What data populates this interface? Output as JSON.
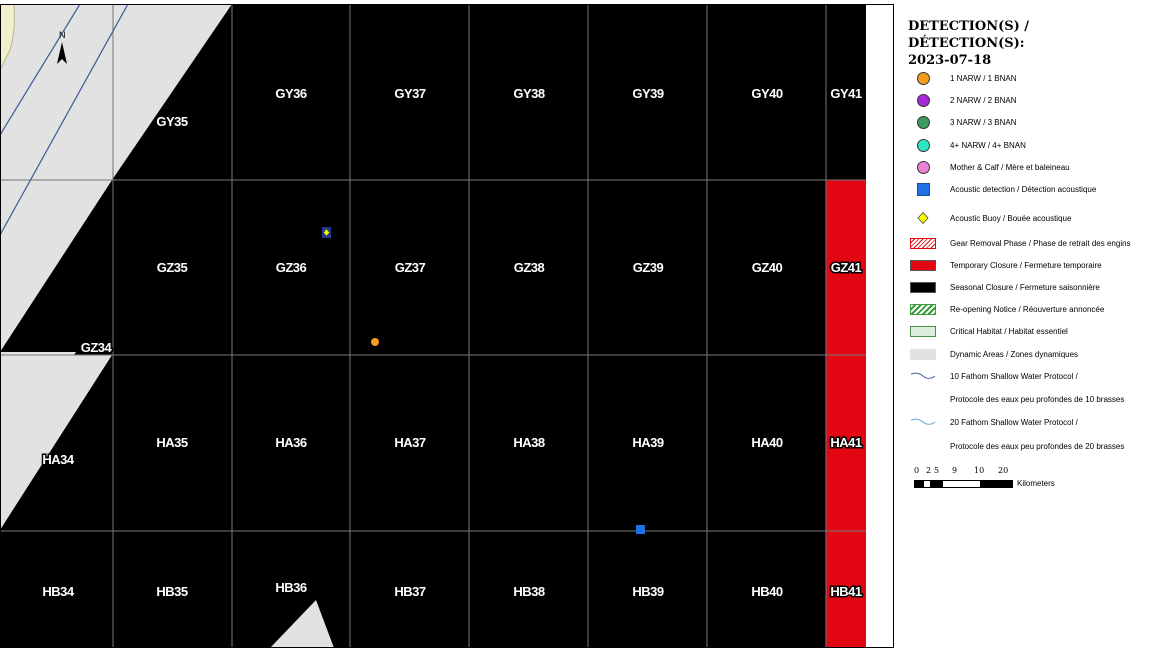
{
  "map": {
    "north_label": "N",
    "grid_labels": {
      "GY35": "GY35",
      "GY36": "GY36",
      "GY37": "GY37",
      "GY38": "GY38",
      "GY39": "GY39",
      "GY40": "GY40",
      "GY41": "GY41",
      "GZ34": "GZ34",
      "GZ35": "GZ35",
      "GZ36": "GZ36",
      "GZ37": "GZ37",
      "GZ38": "GZ38",
      "GZ39": "GZ39",
      "GZ40": "GZ40",
      "GZ41": "GZ41",
      "HA34": "HA34",
      "HA35": "HA35",
      "HA36": "HA36",
      "HA37": "HA37",
      "HA38": "HA38",
      "HA39": "HA39",
      "HA40": "HA40",
      "HA41": "HA41",
      "HB34": "HB34",
      "HB35": "HB35",
      "HB36": "HB36",
      "HB37": "HB37",
      "HB38": "HB38",
      "HB39": "HB39",
      "HB40": "HB40",
      "HB41": "HB41"
    },
    "colors": {
      "seasonal_closure": "#000000",
      "temporary_closure": "#e30613",
      "dynamic_area": "#e2e2e2",
      "grid_line": "#777777",
      "protocol_line": "#3a5a9a",
      "detection_1": "#f39c1e",
      "acoustic_detection": "#1f6fe5",
      "buoy_fill": "#ffff00"
    }
  },
  "legend": {
    "title": "DETECTION(S) / DÉTECTION(S):",
    "date": "2023-07-18",
    "items": [
      {
        "label": "1 NARW / 1 BNAN",
        "color": "#f39c1e",
        "shape": "circle"
      },
      {
        "label": "2 NARW / 2 BNAN",
        "color": "#a52bd6",
        "shape": "circle"
      },
      {
        "label": "3 NARW / 3 BNAN",
        "color": "#3c9a5f",
        "shape": "circle"
      },
      {
        "label": "4+ NARW / 4+ BNAN",
        "color": "#2ee6c4",
        "shape": "circle"
      },
      {
        "label": "Mother & Calf / Mère et baleineau",
        "color": "#ee82d6",
        "shape": "circle"
      },
      {
        "label": "Acoustic detection / Détection acoustique",
        "color": "#1f6fe5",
        "shape": "square"
      },
      {
        "label": "Acoustic Buoy / Bouée acoustique",
        "color": "#ffff00",
        "shape": "diamond-icon"
      },
      {
        "label": "Gear Removal Phase / Phase de retrait des engins",
        "color": "#e30613",
        "shape": "hatched-red"
      },
      {
        "label": "Temporary Closure / Fermeture temporaire",
        "color": "#e30613",
        "shape": "rect"
      },
      {
        "label": "Seasonal Closure / Fermeture saisonnière",
        "color": "#000000",
        "shape": "rect"
      },
      {
        "label": "Re-opening Notice / Réouverture  annoncée",
        "color": "#3c9a3c",
        "shape": "hatched-green"
      },
      {
        "label": "Critical Habitat / Habitat essentiel",
        "color": "#dcefdc",
        "shape": "rect-green-border"
      },
      {
        "label": "Dynamic Areas / Zones dynamiques",
        "color": "#e2e2e2",
        "shape": "rect"
      },
      {
        "label": "10 Fathom Shallow Water Protocol /",
        "color": "#3a5a9a",
        "shape": "wave-line"
      },
      {
        "label": "Protocole des eaux peu profondes de 10 brasses",
        "color": "",
        "shape": "none"
      },
      {
        "label": "20 Fathom Shallow Water Protocol /",
        "color": "#5fa8d8",
        "shape": "wave-line"
      },
      {
        "label": "Protocole des eaux peu profondes de 20 brasses",
        "color": "",
        "shape": "none"
      }
    ],
    "scale": {
      "ticks": [
        "0",
        "2",
        "5",
        "9",
        "10",
        "20"
      ],
      "unit": "Kilometers"
    }
  }
}
